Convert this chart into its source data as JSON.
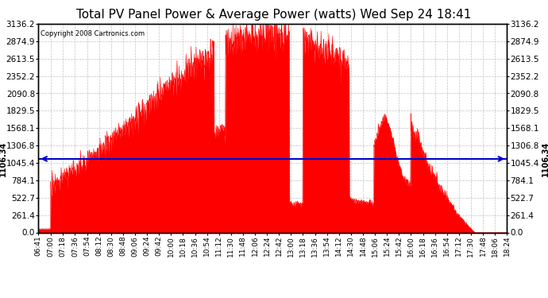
{
  "title": "Total PV Panel Power & Average Power (watts) Wed Sep 24 18:41",
  "copyright": "Copyright 2008 Cartronics.com",
  "average_value": 1106.34,
  "y_max": 3136.2,
  "y_min": 0.0,
  "y_ticks": [
    0.0,
    261.4,
    522.7,
    784.1,
    1045.4,
    1306.8,
    1568.1,
    1829.5,
    2090.8,
    2352.2,
    2613.5,
    2874.9,
    3136.2
  ],
  "background_color": "#ffffff",
  "plot_bg_color": "#ffffff",
  "fill_color": "#ff0000",
  "line_color": "#0000cc",
  "grid_color": "#bbbbbb",
  "title_fontsize": 11,
  "copyright_fontsize": 6,
  "x_label_fontsize": 6.5,
  "y_label_fontsize": 7.5,
  "x_tick_labels": [
    "06:41",
    "07:00",
    "07:18",
    "07:36",
    "07:54",
    "08:12",
    "08:30",
    "08:48",
    "09:06",
    "09:24",
    "09:42",
    "10:00",
    "10:18",
    "10:36",
    "10:54",
    "11:12",
    "11:30",
    "11:48",
    "12:06",
    "12:24",
    "12:42",
    "13:00",
    "13:18",
    "13:36",
    "13:54",
    "14:12",
    "14:30",
    "14:48",
    "15:06",
    "15:24",
    "15:42",
    "16:00",
    "16:18",
    "16:36",
    "16:54",
    "17:12",
    "17:30",
    "17:48",
    "18:06",
    "18:24"
  ]
}
